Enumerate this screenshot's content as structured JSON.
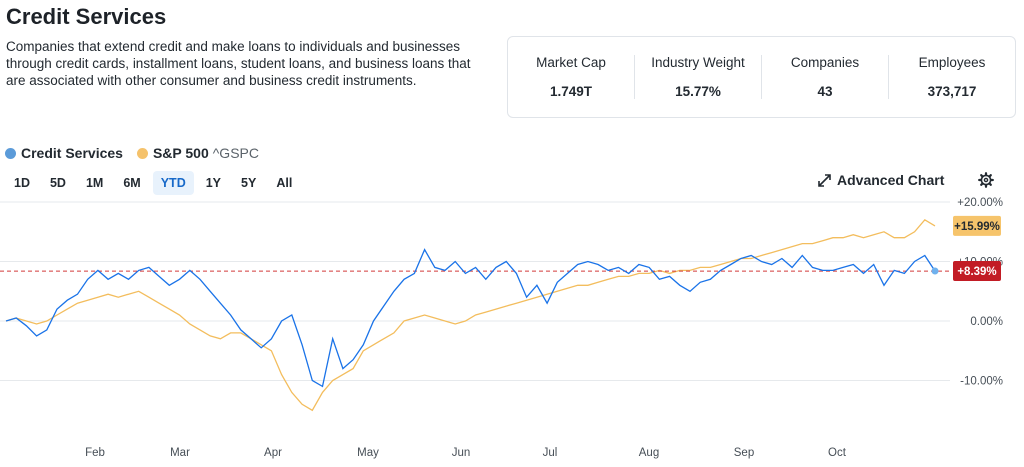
{
  "header": {
    "title": "Credit Services",
    "description": "Companies that extend credit and make loans to individuals and businesses through credit cards, installment loans, student loans, and business loans that are associated with other consumer and business credit instruments."
  },
  "stats": [
    {
      "label": "Market Cap",
      "value": "1.749T"
    },
    {
      "label": "Industry Weight",
      "value": "15.77%"
    },
    {
      "label": "Companies",
      "value": "43"
    },
    {
      "label": "Employees",
      "value": "373,717"
    }
  ],
  "legend": {
    "series1": {
      "name": "Credit Services",
      "color": "#5b9bd9"
    },
    "series2": {
      "name": "S&P 500",
      "symbol": "^GSPC",
      "color": "#f5c26b"
    }
  },
  "ranges": [
    "1D",
    "5D",
    "1M",
    "6M",
    "YTD",
    "1Y",
    "5Y",
    "All"
  ],
  "active_range": "YTD",
  "toolbar": {
    "advanced_chart": "Advanced Chart",
    "advanced_icon": "expand-arrows-icon",
    "settings_icon": "gear-icon"
  },
  "chart_data": {
    "type": "line",
    "ylim": [
      -15,
      20
    ],
    "y_ticks": [
      {
        "v": 20,
        "label": "+20.00%"
      },
      {
        "v": 10,
        "label": "+10.00%"
      },
      {
        "v": 0,
        "label": "0.00%"
      },
      {
        "v": -10,
        "label": "-10.00%"
      }
    ],
    "x_ticks": [
      "Feb",
      "Mar",
      "Apr",
      "May",
      "Jun",
      "Jul",
      "Aug",
      "Sep",
      "Oct"
    ],
    "grid": true,
    "reference_line": 8.39,
    "series": [
      {
        "name": "Credit Services",
        "color": "#1a73e8",
        "badge_color": "#c21c25",
        "last_label": "+8.39%",
        "values": [
          0.0,
          0.5,
          -0.8,
          -2.5,
          -1.5,
          2.0,
          3.5,
          4.5,
          7.0,
          8.5,
          7.0,
          8.0,
          7.0,
          8.5,
          9.0,
          7.5,
          6.0,
          7.0,
          8.5,
          7.0,
          5.0,
          3.0,
          1.0,
          -1.5,
          -3.0,
          -4.5,
          -3.0,
          0.0,
          1.0,
          -4.0,
          -10.0,
          -11.0,
          -3.0,
          -8.0,
          -6.5,
          -4.0,
          0.0,
          2.5,
          5.0,
          7.0,
          8.0,
          12.0,
          9.0,
          8.5,
          10.0,
          8.0,
          9.0,
          7.0,
          9.0,
          10.0,
          8.0,
          4.0,
          6.0,
          3.0,
          6.5,
          8.0,
          9.5,
          10.0,
          9.5,
          8.5,
          9.0,
          8.0,
          9.5,
          9.0,
          7.0,
          7.5,
          6.0,
          5.0,
          6.5,
          7.0,
          8.5,
          9.5,
          10.5,
          11.0,
          10.0,
          9.5,
          10.5,
          9.0,
          11.0,
          9.0,
          8.5,
          8.5,
          9.0,
          9.5,
          8.0,
          9.5,
          6.0,
          8.5,
          8.0,
          10.0,
          11.0,
          8.4
        ]
      },
      {
        "name": "S&P 500",
        "color": "#f3bd5d",
        "badge_color": "#f6c46b",
        "last_label": "+15.99%",
        "values": [
          0.0,
          0.5,
          0.0,
          -0.5,
          0.0,
          1.0,
          2.0,
          3.0,
          3.5,
          4.0,
          4.5,
          4.0,
          4.5,
          5.0,
          4.0,
          3.0,
          2.0,
          1.0,
          -0.5,
          -1.5,
          -2.5,
          -3.0,
          -2.0,
          -2.0,
          -3.0,
          -4.0,
          -5.0,
          -9.0,
          -12.0,
          -14.0,
          -15.0,
          -12.0,
          -10.0,
          -9.0,
          -8.0,
          -5.0,
          -4.0,
          -3.0,
          -2.0,
          0.0,
          0.5,
          1.0,
          0.5,
          0.0,
          -0.5,
          0.0,
          1.0,
          1.5,
          2.0,
          2.5,
          3.0,
          3.5,
          4.0,
          4.5,
          5.0,
          5.5,
          6.0,
          6.0,
          6.5,
          7.0,
          7.5,
          7.5,
          8.0,
          8.0,
          8.5,
          8.0,
          8.5,
          8.5,
          9.0,
          9.0,
          9.5,
          10.0,
          10.5,
          10.5,
          11.0,
          11.5,
          12.0,
          12.5,
          13.0,
          13.0,
          13.5,
          14.0,
          14.0,
          14.5,
          14.0,
          14.5,
          15.0,
          14.0,
          14.0,
          15.0,
          17.0,
          15.99
        ]
      }
    ]
  }
}
